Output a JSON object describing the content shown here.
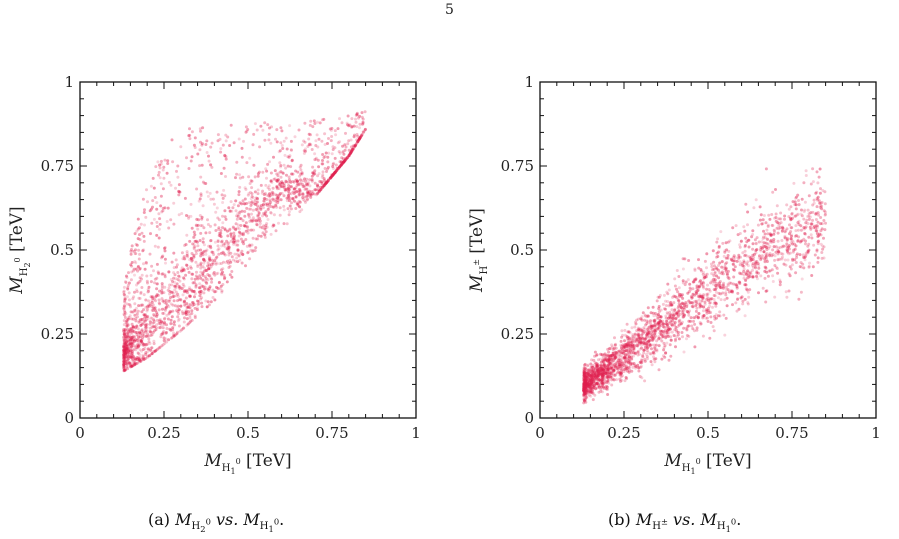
{
  "page_number": "5",
  "captions": [
    {
      "tag": "(a)",
      "y_name": "M",
      "y_sub": "H",
      "y_sub_sub": "2",
      "y_sup": "0",
      "vs": "vs.",
      "x_name": "M",
      "x_sub": "H",
      "x_sub_sub": "1",
      "x_sup": "0"
    },
    {
      "tag": "(b)",
      "y_name": "M",
      "y_sub": "H",
      "y_sub_sub": "",
      "y_sup": "±",
      "vs": "vs.",
      "x_name": "M",
      "x_sub": "H",
      "x_sub_sub": "1",
      "x_sup": "0"
    }
  ],
  "colors": {
    "points": "#e0204f",
    "axis": "#111111",
    "background": "#ffffff"
  },
  "chart_data": [
    {
      "type": "scatter",
      "title": "",
      "xlabel": "M_{H1^0} [TeV]",
      "ylabel": "M_{H2^0} [TeV]",
      "xlabel_parts": {
        "symbol": "M",
        "sub": "H",
        "subsub": "1",
        "sup": "0",
        "unit": "[TeV]"
      },
      "ylabel_parts": {
        "symbol": "M",
        "sub": "H",
        "subsub": "2",
        "sup": "0",
        "unit": "[TeV]"
      },
      "xlim": [
        0,
        1
      ],
      "ylim": [
        0,
        1
      ],
      "xticks": [
        0,
        0.25,
        0.5,
        0.75,
        1
      ],
      "xtick_labels": [
        "0",
        "0.25",
        "0.5",
        "0.75",
        "1"
      ],
      "yticks": [
        0,
        0.25,
        0.5,
        0.75,
        1
      ],
      "ytick_labels": [
        "0",
        "0.25",
        "0.5",
        "0.75",
        "1"
      ],
      "grid": false,
      "legend": "none",
      "distribution": {
        "x_range": [
          0.13,
          0.85
        ],
        "lower_edge": [
          [
            0.13,
            0.14
          ],
          [
            0.2,
            0.18
          ],
          [
            0.3,
            0.26
          ],
          [
            0.4,
            0.35
          ],
          [
            0.5,
            0.46
          ],
          [
            0.6,
            0.56
          ],
          [
            0.7,
            0.66
          ],
          [
            0.8,
            0.78
          ],
          [
            0.85,
            0.86
          ]
        ],
        "upper_edge": [
          [
            0.13,
            0.38
          ],
          [
            0.16,
            0.55
          ],
          [
            0.2,
            0.72
          ],
          [
            0.25,
            0.82
          ],
          [
            0.3,
            0.86
          ],
          [
            0.4,
            0.87
          ],
          [
            0.5,
            0.88
          ],
          [
            0.6,
            0.88
          ],
          [
            0.7,
            0.89
          ],
          [
            0.8,
            0.9
          ],
          [
            0.85,
            0.92
          ]
        ],
        "dense_core": [
          [
            0.15,
            0.2
          ],
          [
            0.2,
            0.27
          ],
          [
            0.3,
            0.36
          ],
          [
            0.4,
            0.46
          ],
          [
            0.5,
            0.58
          ],
          [
            0.6,
            0.68
          ]
        ]
      }
    },
    {
      "type": "scatter",
      "title": "",
      "xlabel": "M_{H1^0} [TeV]",
      "ylabel": "M_{H±} [TeV]",
      "xlabel_parts": {
        "symbol": "M",
        "sub": "H",
        "subsub": "1",
        "sup": "0",
        "unit": "[TeV]"
      },
      "ylabel_parts": {
        "symbol": "M",
        "sub": "H",
        "subsub": "",
        "sup": "±",
        "unit": "[TeV]"
      },
      "xlim": [
        0,
        1
      ],
      "ylim": [
        0,
        1
      ],
      "xticks": [
        0,
        0.25,
        0.5,
        0.75,
        1
      ],
      "xtick_labels": [
        "0",
        "0.25",
        "0.5",
        "0.75",
        "1"
      ],
      "yticks": [
        0,
        0.25,
        0.5,
        0.75,
        1
      ],
      "ytick_labels": [
        "0",
        "0.25",
        "0.5",
        "0.75",
        "1"
      ],
      "grid": false,
      "legend": "none",
      "distribution": {
        "x_range": [
          0.13,
          0.85
        ],
        "center_line": [
          [
            0.13,
            0.1
          ],
          [
            0.2,
            0.15
          ],
          [
            0.3,
            0.22
          ],
          [
            0.4,
            0.3
          ],
          [
            0.5,
            0.38
          ],
          [
            0.6,
            0.45
          ],
          [
            0.7,
            0.51
          ],
          [
            0.8,
            0.56
          ],
          [
            0.85,
            0.6
          ]
        ],
        "spread": [
          [
            0.13,
            0.04
          ],
          [
            0.3,
            0.07
          ],
          [
            0.5,
            0.1
          ],
          [
            0.7,
            0.12
          ],
          [
            0.85,
            0.12
          ]
        ]
      }
    }
  ]
}
